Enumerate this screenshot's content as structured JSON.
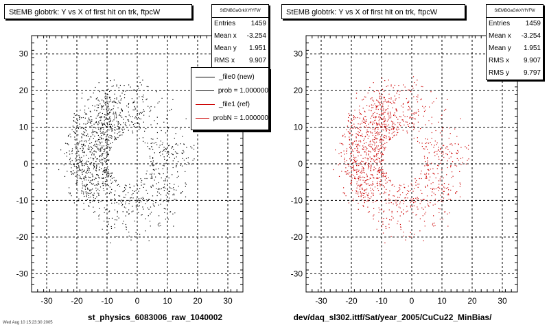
{
  "chart_data": [
    {
      "type": "scatter",
      "title": "StEMB globtrk: Y vs X of first hit on trk, ftpcW",
      "xlim": [
        -35,
        35
      ],
      "ylim": [
        -35,
        35
      ],
      "xticks": [
        -30,
        -20,
        -10,
        0,
        10,
        20,
        30
      ],
      "yticks": [
        -30,
        -20,
        -10,
        0,
        10,
        20,
        30
      ],
      "grid": true,
      "xlabel": "st_physics_6083006_raw_1040002",
      "ylabel": "",
      "point_color": "#000000",
      "point_count": 1459,
      "ring_inner_radius": 6.5,
      "ring_outer_radius": 24,
      "stats": {
        "name": "StEMBGaGrkXYfYFW",
        "rows": [
          {
            "label": "Entries",
            "value": "1459"
          },
          {
            "label": "Mean x",
            "value": "-3.254"
          },
          {
            "label": "Mean y",
            "value": "1.951"
          },
          {
            "label": "RMS x",
            "value": "9.907"
          }
        ]
      },
      "legend": {
        "placement": "top-right",
        "entries": [
          {
            "label": "_file0 (new)",
            "color": "#000000"
          },
          {
            "label": "prob = 1.000000",
            "color": "#000000"
          },
          {
            "label": "_file1 (ref)",
            "color": "#cc0000"
          },
          {
            "label": "probN = 1.000000",
            "color": "#cc0000"
          }
        ]
      }
    },
    {
      "type": "scatter",
      "title": "StEMB globtrk: Y vs X of first hit on trk, ftpcW",
      "xlim": [
        -35,
        35
      ],
      "ylim": [
        -35,
        35
      ],
      "xticks": [
        -30,
        -20,
        -10,
        0,
        10,
        20,
        30
      ],
      "yticks": [
        -30,
        -20,
        -10,
        0,
        10,
        20,
        30
      ],
      "grid": true,
      "xlabel": "dev/daq_sl302.ittf/Sat/year_2005/CuCu22_MinBias/",
      "ylabel": "",
      "point_color": "#cc0000",
      "point_count": 1459,
      "ring_inner_radius": 6.5,
      "ring_outer_radius": 24,
      "stats": {
        "name": "StEMBGaGrkXYfYFW",
        "rows": [
          {
            "label": "Entries",
            "value": "1459"
          },
          {
            "label": "Mean x",
            "value": "-3.254"
          },
          {
            "label": "Mean y",
            "value": "1.951"
          },
          {
            "label": "RMS x",
            "value": "9.907"
          },
          {
            "label": "RMS y",
            "value": "9.797"
          }
        ]
      }
    }
  ],
  "footer": "Wed Aug 10 15:23:30 2005"
}
